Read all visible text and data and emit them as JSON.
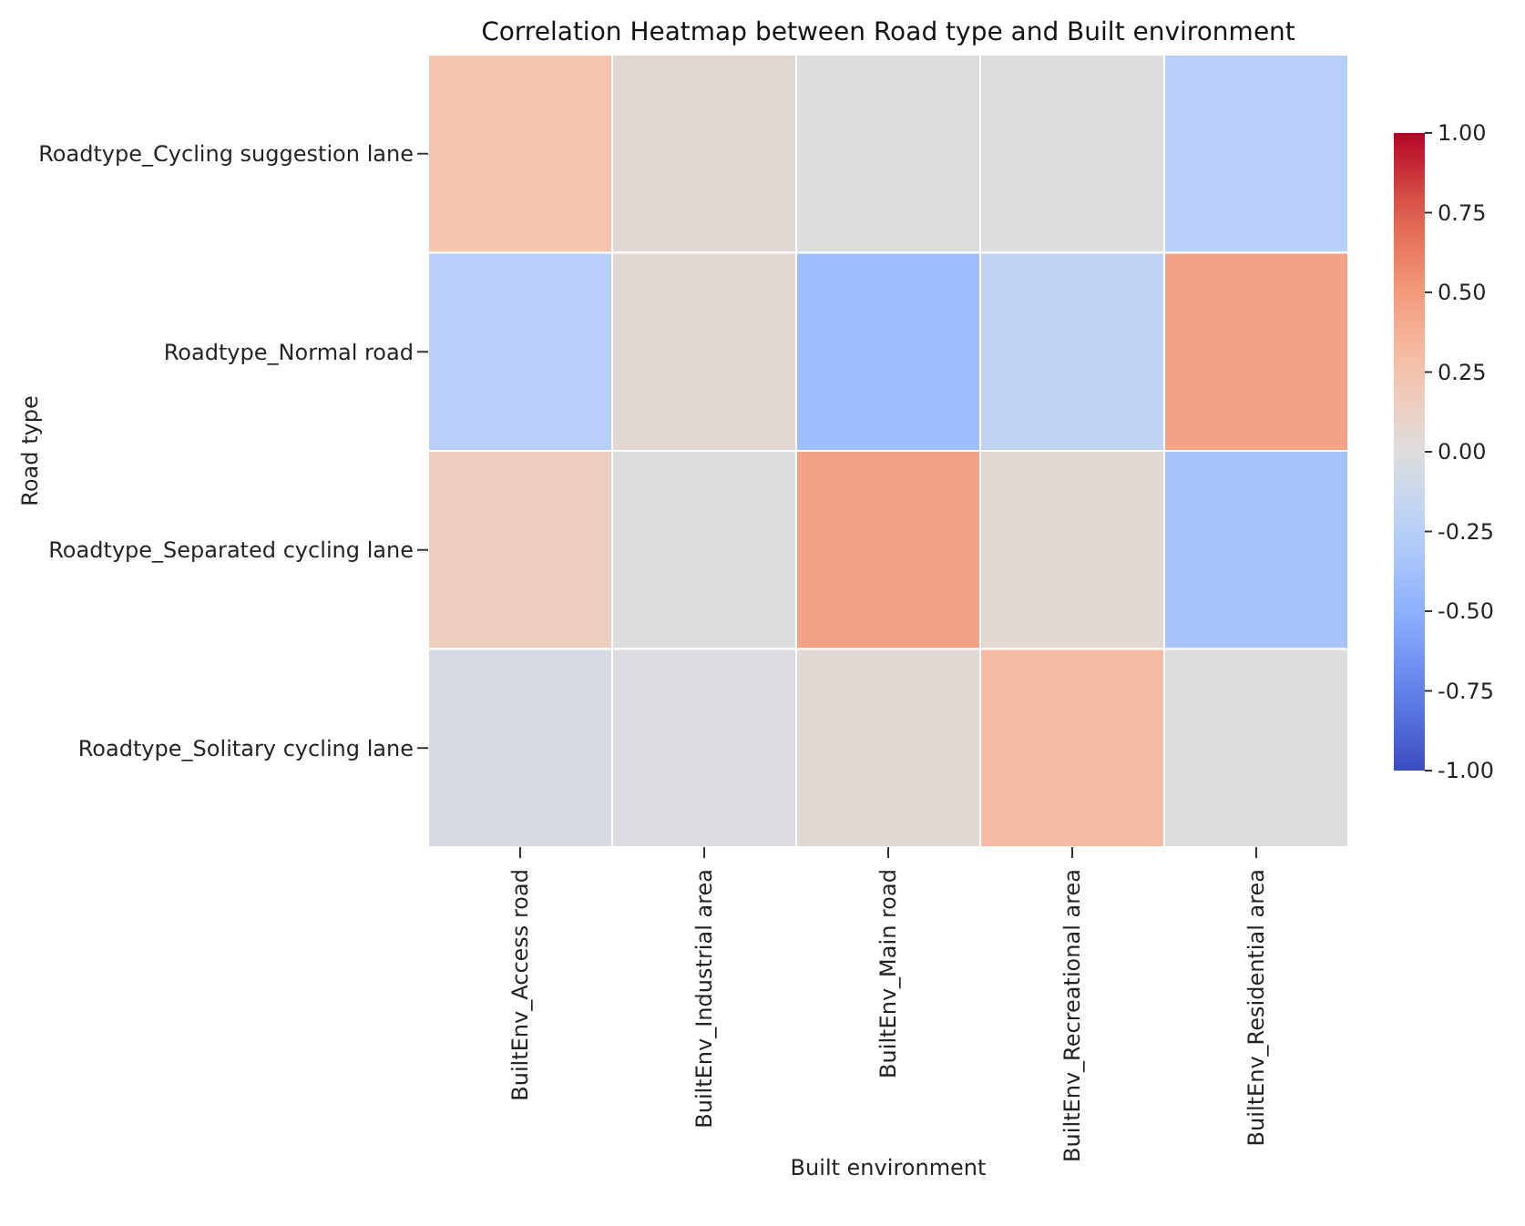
{
  "chart_data": {
    "type": "heatmap",
    "title": "Correlation Heatmap between Road type and Built environment",
    "xlabel": "Built environment",
    "ylabel": "Road type",
    "categories": [
      "BuiltEnv_Access road",
      "BuiltEnv_Industrial area",
      "BuiltEnv_Main road",
      "BuiltEnv_Recreational area",
      "BuiltEnv_Residential area"
    ],
    "y_categories": [
      "Roadtype_Cycling suggestion lane",
      "Roadtype_Normal road",
      "Roadtype_Separated cycling lane",
      "Roadtype_Solitary cycling lane"
    ],
    "cells": [
      [
        0.25,
        0.05,
        0.0,
        0.0,
        -0.25
      ],
      [
        -0.25,
        0.05,
        -0.4,
        -0.2,
        0.45
      ],
      [
        0.15,
        0.0,
        0.45,
        0.05,
        -0.35
      ],
      [
        -0.05,
        -0.02,
        0.05,
        0.3,
        0.0
      ]
    ],
    "clim": [
      -1,
      1
    ],
    "cticks": [
      {
        "value": 1,
        "label": "1.00"
      },
      {
        "value": 0.75,
        "label": "0.75"
      },
      {
        "value": 0.5,
        "label": "0.50"
      },
      {
        "value": 0.25,
        "label": "0.25"
      },
      {
        "value": 0,
        "label": "0.00"
      },
      {
        "value": -0.25,
        "label": "-0.25"
      },
      {
        "value": -0.5,
        "label": "-0.50"
      },
      {
        "value": -0.75,
        "label": "-0.75"
      },
      {
        "value": -1,
        "label": "-1.00"
      }
    ]
  }
}
